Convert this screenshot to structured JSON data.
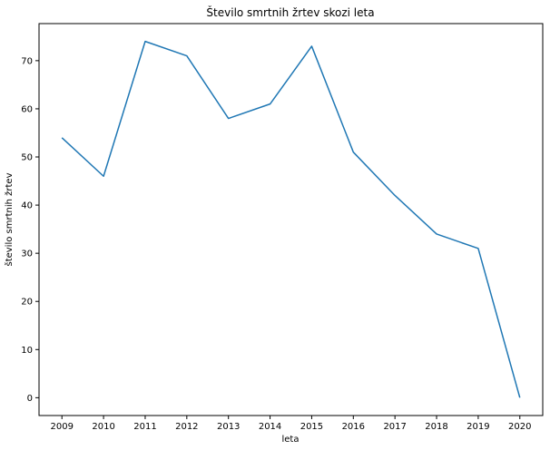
{
  "chart_data": {
    "type": "line",
    "title": "Število smrtnih žrtev skozi leta",
    "xlabel": "leta",
    "ylabel": "število smrtnih žrtev",
    "x": [
      2009,
      2010,
      2011,
      2012,
      2013,
      2014,
      2015,
      2016,
      2017,
      2018,
      2019,
      2020
    ],
    "series": [
      {
        "values": [
          54,
          46,
          74,
          71,
          58,
          61,
          73,
          51,
          42,
          34,
          31,
          0
        ]
      }
    ],
    "xticks": [
      "2009",
      "2010",
      "2011",
      "2012",
      "2013",
      "2014",
      "2015",
      "2016",
      "2017",
      "2018",
      "2019",
      "2020"
    ],
    "yticks": [
      "0",
      "10",
      "20",
      "30",
      "40",
      "50",
      "60",
      "70"
    ],
    "ytick_values": [
      0,
      10,
      20,
      30,
      40,
      50,
      60,
      70
    ],
    "ylim": [
      -3.7,
      77.7
    ],
    "grid": false,
    "line_color": "#1f77b4"
  }
}
